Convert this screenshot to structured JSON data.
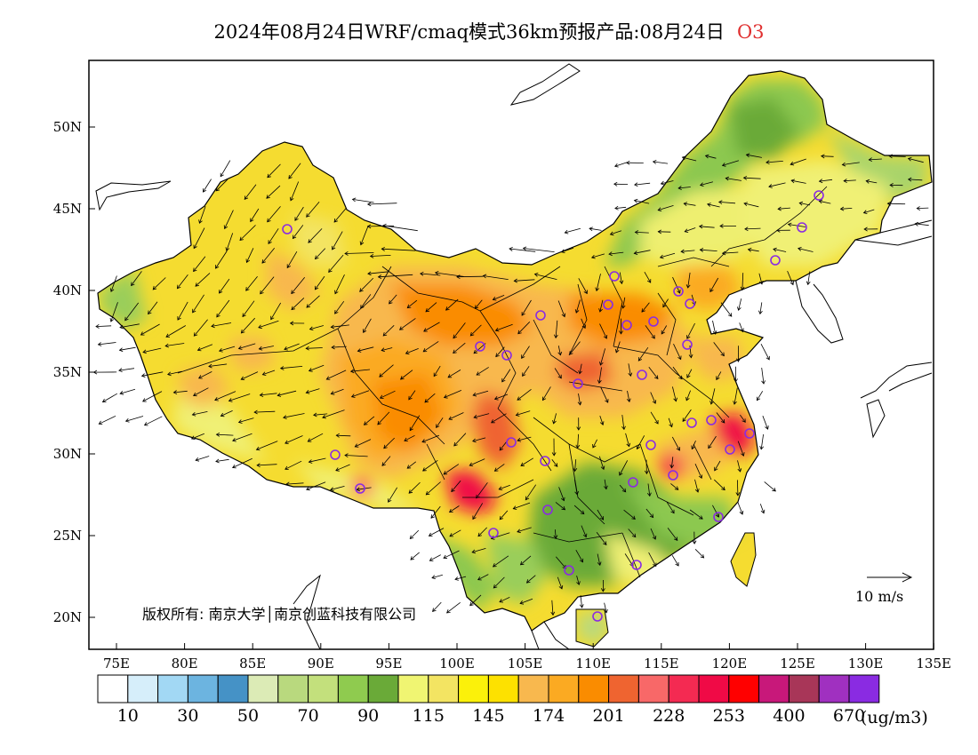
{
  "title": "2024年08月24日WRF/cmaq模式36km预报产品:08月24日",
  "variable": "O3",
  "copyright": "版权所有: 南京大学│南京创蓝科技有限公司",
  "wind_reference": "10 m/s",
  "lat_ticks": [
    "20N",
    "25N",
    "30N",
    "35N",
    "40N",
    "45N",
    "50N"
  ],
  "lon_ticks": [
    "75E",
    "80E",
    "85E",
    "90E",
    "95E",
    "100E",
    "105E",
    "110E",
    "115E",
    "120E",
    "125E",
    "130E",
    "135E"
  ],
  "colorbar": {
    "colors": [
      "#ffffff",
      "#d6eefa",
      "#a2d8f4",
      "#6cb4e0",
      "#4592c6",
      "#dcebb6",
      "#b9d97e",
      "#c3e07c",
      "#8fcb4f",
      "#6aaa38",
      "#f0f572",
      "#f3e462",
      "#fbf10a",
      "#fde100",
      "#f8b84e",
      "#fbaa22",
      "#fa8c00",
      "#ef6430",
      "#f86868",
      "#f42a52",
      "#f00a46",
      "#ff0000",
      "#c8187a",
      "#a83658",
      "#a030c0",
      "#8a2be2"
    ],
    "labels": [
      "10",
      "30",
      "50",
      "70",
      "90",
      "115",
      "145",
      "174",
      "201",
      "228",
      "253",
      "400",
      "670"
    ],
    "unit": "(ug/m3)"
  },
  "colors": {
    "frame": "#000000",
    "land_base": "#f5dc30",
    "ocean": "#ffffff"
  },
  "city_marker_color": "#8a2be2"
}
